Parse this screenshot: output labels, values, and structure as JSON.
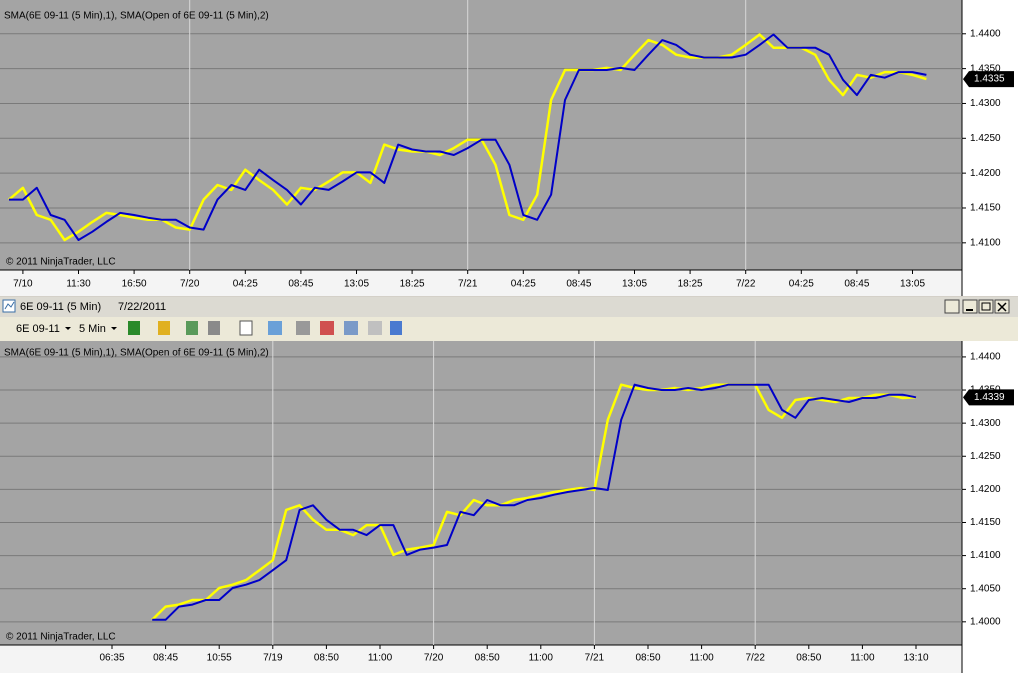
{
  "window": {
    "title": "6E 09-11 (5 Min)",
    "date": "7/22/2011",
    "instrument": "6E 09-11",
    "interval": "5 Min"
  },
  "chart_data": [
    {
      "type": "line",
      "title": "SMA(6E 09-11 (5 Min),1), SMA(Open of 6E 09-11 (5 Min),2)",
      "annotation": "© 2011 NinjaTrader, LLC",
      "categories": [
        null,
        "7/10",
        null,
        null,
        null,
        "11:30",
        null,
        null,
        null,
        "16:50",
        null,
        null,
        null,
        "7/20",
        null,
        null,
        null,
        "04:25",
        null,
        null,
        null,
        "08:45",
        null,
        null,
        null,
        "13:05",
        null,
        null,
        null,
        "18:25",
        null,
        null,
        null,
        "7/21",
        null,
        null,
        null,
        "04:25",
        null,
        null,
        null,
        "08:45",
        null,
        null,
        null,
        "13:05",
        null,
        null,
        null,
        "18:25",
        null,
        null,
        null,
        "7/22",
        null,
        null,
        null,
        "04:25",
        null,
        null,
        null,
        "08:45",
        null,
        null,
        null,
        "13:05",
        null
      ],
      "series": [
        {
          "color": "#ffff00",
          "values": [
            1.4162,
            1.4179,
            1.414,
            1.4133,
            1.4104,
            1.4116,
            1.413,
            1.4143,
            1.414,
            1.4136,
            1.4133,
            1.4133,
            1.4122,
            1.4119,
            1.4162,
            1.4183,
            1.4176,
            1.4205,
            1.419,
            1.4176,
            1.4155,
            1.4179,
            1.4176,
            1.4188,
            1.4201,
            1.4201,
            1.4186,
            1.4241,
            1.4234,
            1.4231,
            1.4231,
            1.4226,
            1.4236,
            1.4248,
            1.4248,
            1.4212,
            1.414,
            1.4133,
            1.4169,
            1.4305,
            1.4348,
            1.4348,
            1.4348,
            1.4351,
            1.4348,
            1.437,
            1.4391,
            1.4384,
            1.437,
            1.4366,
            1.4366,
            1.4366,
            1.437,
            1.4384,
            1.4399,
            1.438,
            1.438,
            1.438,
            1.437,
            1.4334,
            1.4312,
            1.4341,
            1.4337,
            1.4345,
            1.4345,
            1.4341,
            1.4335
          ]
        },
        {
          "color": "#0000c8",
          "values": [
            1.4162,
            1.4162,
            1.4179,
            1.414,
            1.4133,
            1.4104,
            1.4116,
            1.413,
            1.4143,
            1.414,
            1.4136,
            1.4133,
            1.4133,
            1.4122,
            1.4119,
            1.4162,
            1.4183,
            1.4176,
            1.4205,
            1.419,
            1.4176,
            1.4155,
            1.4179,
            1.4176,
            1.4188,
            1.4201,
            1.4201,
            1.4186,
            1.4241,
            1.4234,
            1.4231,
            1.4231,
            1.4226,
            1.4236,
            1.4248,
            1.4248,
            1.4212,
            1.414,
            1.4133,
            1.4169,
            1.4305,
            1.4348,
            1.4348,
            1.4348,
            1.4351,
            1.4348,
            1.437,
            1.4391,
            1.4384,
            1.437,
            1.4366,
            1.4366,
            1.4366,
            1.437,
            1.4384,
            1.4399,
            1.438,
            1.438,
            1.438,
            1.437,
            1.4334,
            1.4312,
            1.4341,
            1.4337,
            1.4345,
            1.4345,
            1.4341
          ]
        }
      ],
      "ylim": [
        1.4061,
        1.4437
      ],
      "yticks": [
        {
          "value": 1.41,
          "label": "1.4100"
        },
        {
          "value": 1.415,
          "label": "1.4150"
        },
        {
          "value": 1.42,
          "label": "1.4200"
        },
        {
          "value": 1.425,
          "label": "1.4250"
        },
        {
          "value": 1.43,
          "label": "1.4300"
        },
        {
          "value": 1.435,
          "label": "1.4350"
        },
        {
          "value": 1.44,
          "label": "1.4400"
        }
      ],
      "price_marker": {
        "value": 1.4335,
        "label": "1.4335"
      }
    },
    {
      "type": "line",
      "title": "SMA(6E 09-11 (5 Min),1), SMA(Open of 6E 09-11 (5 Min),2)",
      "annotation": "© 2011 NinjaTrader, LLC",
      "categories": [
        "06:35",
        null,
        null,
        null,
        "08:45",
        null,
        null,
        null,
        "10:55",
        null,
        null,
        null,
        "7/19",
        null,
        null,
        null,
        "08:50",
        null,
        null,
        null,
        "11:00",
        null,
        null,
        null,
        "7/20",
        null,
        null,
        null,
        "08:50",
        null,
        null,
        null,
        "11:00",
        null,
        null,
        null,
        "7/21",
        null,
        null,
        null,
        "08:50",
        null,
        null,
        null,
        "11:00",
        null,
        null,
        null,
        "7/22",
        null,
        null,
        null,
        "08:50",
        null,
        null,
        null,
        "11:00",
        null,
        null,
        null,
        "13:10"
      ],
      "series": [
        {
          "color": "#ffff00",
          "values": [
            null,
            null,
            null,
            1.4003,
            1.4023,
            1.4026,
            1.4033,
            1.4033,
            1.4051,
            1.4056,
            1.4063,
            1.4078,
            1.4093,
            1.4169,
            1.4176,
            1.4154,
            1.4139,
            1.4139,
            1.4131,
            1.4146,
            1.4146,
            1.4101,
            1.4109,
            1.4112,
            1.4116,
            1.4166,
            1.4161,
            1.4184,
            1.4176,
            1.4176,
            1.4184,
            1.4187,
            1.4192,
            1.4196,
            1.4199,
            1.4202,
            1.4199,
            1.4305,
            1.4358,
            1.4353,
            1.435,
            1.435,
            1.4353,
            1.435,
            1.4353,
            1.4358,
            1.4358,
            1.4358,
            1.4358,
            1.432,
            1.4308,
            1.4335,
            1.4338,
            1.4335,
            1.4332,
            1.4338,
            1.4338,
            1.4343,
            1.4343,
            1.4338,
            1.4339
          ]
        },
        {
          "color": "#0000c8",
          "values": [
            null,
            null,
            null,
            1.4003,
            1.4003,
            1.4023,
            1.4026,
            1.4033,
            1.4033,
            1.4051,
            1.4056,
            1.4063,
            1.4078,
            1.4093,
            1.4169,
            1.4176,
            1.4154,
            1.4139,
            1.4139,
            1.4131,
            1.4146,
            1.4146,
            1.4101,
            1.4109,
            1.4112,
            1.4116,
            1.4166,
            1.4161,
            1.4184,
            1.4176,
            1.4176,
            1.4184,
            1.4187,
            1.4192,
            1.4196,
            1.4199,
            1.4202,
            1.4199,
            1.4305,
            1.4358,
            1.4353,
            1.435,
            1.435,
            1.4353,
            1.435,
            1.4353,
            1.4358,
            1.4358,
            1.4358,
            1.4358,
            1.432,
            1.4308,
            1.4335,
            1.4338,
            1.4335,
            1.4332,
            1.4338,
            1.4338,
            1.4343,
            1.4343,
            1.4339
          ]
        }
      ],
      "ylim": [
        1.3965,
        1.4418
      ],
      "yticks": [
        {
          "value": 1.4,
          "label": "1.4000"
        },
        {
          "value": 1.405,
          "label": "1.4050"
        },
        {
          "value": 1.41,
          "label": "1.4100"
        },
        {
          "value": 1.415,
          "label": "1.4150"
        },
        {
          "value": 1.42,
          "label": "1.4200"
        },
        {
          "value": 1.425,
          "label": "1.4250"
        },
        {
          "value": 1.43,
          "label": "1.4300"
        },
        {
          "value": 1.435,
          "label": "1.4350"
        },
        {
          "value": 1.44,
          "label": "1.4400"
        }
      ],
      "price_marker": {
        "value": 1.4339,
        "label": "1.4339"
      }
    }
  ]
}
